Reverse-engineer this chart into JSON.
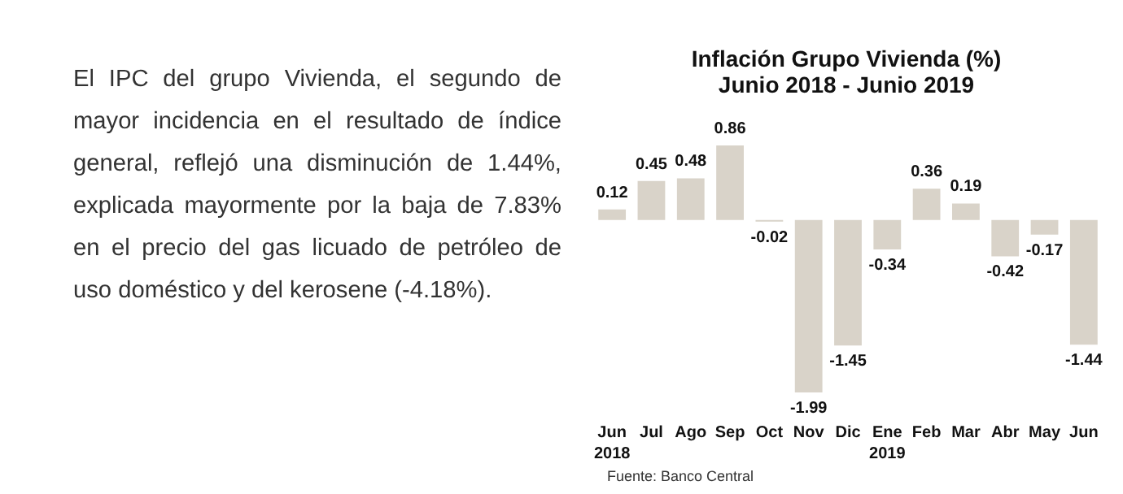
{
  "chart_data": {
    "type": "bar",
    "title": "Inflación Grupo Vivienda (%)",
    "subtitle": "Junio 2018 - Junio 2019",
    "categories": [
      "Jun\n2018",
      "Jul",
      "Ago",
      "Sep",
      "Oct",
      "Nov",
      "Dic",
      "Ene\n2019",
      "Feb",
      "Mar",
      "Abr",
      "May",
      "Jun"
    ],
    "values": [
      0.12,
      0.45,
      0.48,
      0.86,
      -0.02,
      -1.99,
      -1.45,
      -0.34,
      0.36,
      0.19,
      -0.42,
      -0.17,
      -1.44
    ],
    "color": "#d9d3c9",
    "data_labels": true,
    "annotations": [
      "El IPC del grupo Vivienda, el segundo de mayor incidencia en el resultado de índice general, reflejó una disminución de 1.44%, explicada mayormente por la baja de 7.83% en el precio del gas licuado de petróleo de uso doméstico y del kerosene (-4.18%).",
      "Fuente: Banco Central"
    ]
  }
}
